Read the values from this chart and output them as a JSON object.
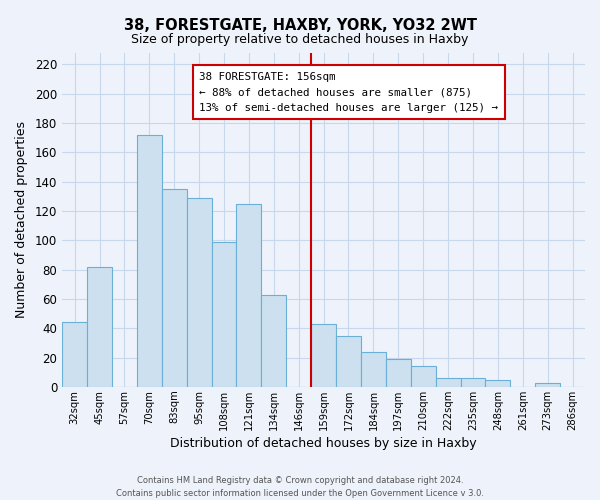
{
  "title": "38, FORESTGATE, HAXBY, YORK, YO32 2WT",
  "subtitle": "Size of property relative to detached houses in Haxby",
  "xlabel": "Distribution of detached houses by size in Haxby",
  "ylabel": "Number of detached properties",
  "footer_line1": "Contains HM Land Registry data © Crown copyright and database right 2024.",
  "footer_line2": "Contains public sector information licensed under the Open Government Licence v 3.0.",
  "bin_labels": [
    "32sqm",
    "45sqm",
    "57sqm",
    "70sqm",
    "83sqm",
    "95sqm",
    "108sqm",
    "121sqm",
    "134sqm",
    "146sqm",
    "159sqm",
    "172sqm",
    "184sqm",
    "197sqm",
    "210sqm",
    "222sqm",
    "235sqm",
    "248sqm",
    "261sqm",
    "273sqm",
    "286sqm"
  ],
  "bar_heights": [
    44,
    82,
    0,
    172,
    135,
    129,
    99,
    125,
    63,
    0,
    43,
    35,
    24,
    19,
    14,
    6,
    6,
    5,
    0,
    3,
    0
  ],
  "bar_color": "#cce0f0",
  "bar_edge_color": "#6aafd6",
  "vline_x_index": 10,
  "vline_color": "#cc0000",
  "annotation_title": "38 FORESTGATE: 156sqm",
  "annotation_line1": "← 88% of detached houses are smaller (875)",
  "annotation_line2": "13% of semi-detached houses are larger (125) →",
  "annotation_box_edge_color": "#cc0000",
  "ylim": [
    0,
    228
  ],
  "yticks": [
    0,
    20,
    40,
    60,
    80,
    100,
    120,
    140,
    160,
    180,
    200,
    220
  ],
  "grid_color": "#c8d8ec",
  "background_color": "#eef2fa"
}
